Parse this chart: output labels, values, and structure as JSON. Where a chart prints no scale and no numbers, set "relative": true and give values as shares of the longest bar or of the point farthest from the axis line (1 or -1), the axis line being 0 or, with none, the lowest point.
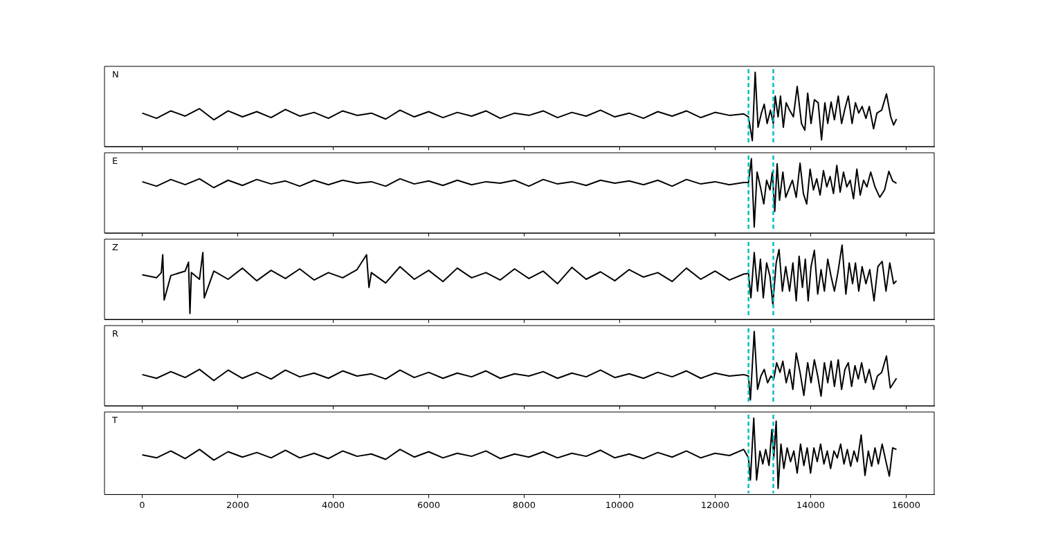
{
  "chart_data": [
    {
      "type": "line",
      "relative": true,
      "marker": "none",
      "annotations": [
        "N"
      ],
      "xlim": [
        -790,
        16590
      ],
      "xticks": [
        0,
        2000,
        4000,
        6000,
        8000,
        10000,
        12000,
        14000,
        16000
      ],
      "tick_labels": false,
      "ref_lines": [
        {
          "axis": "x",
          "value": 12700,
          "color": "#00bfbf",
          "line_style": "dashed"
        },
        {
          "axis": "x",
          "value": 13220,
          "color": "#00bfbf",
          "line_style": "dashed"
        }
      ],
      "series": [
        {
          "color": "#000000",
          "x": [
            0,
            300,
            600,
            900,
            1200,
            1500,
            1800,
            2100,
            2400,
            2700,
            3000,
            3300,
            3600,
            3900,
            4200,
            4500,
            4800,
            5100,
            5400,
            5700,
            6000,
            6300,
            6600,
            6900,
            7200,
            7500,
            7800,
            8100,
            8400,
            8700,
            9000,
            9300,
            9600,
            9900,
            10200,
            10500,
            10800,
            11100,
            11400,
            11700,
            12000,
            12300,
            12600,
            12700,
            12780,
            12840,
            12900,
            12970,
            13030,
            13090,
            13160,
            13220,
            13260,
            13320,
            13370,
            13430,
            13490,
            13560,
            13640,
            13720,
            13810,
            13880,
            13940,
            14010,
            14080,
            14160,
            14230,
            14300,
            14360,
            14430,
            14500,
            14580,
            14650,
            14720,
            14790,
            14870,
            14940,
            15010,
            15080,
            15160,
            15230,
            15320,
            15390,
            15490,
            15590,
            15680,
            15740,
            15800
          ],
          "values": [
            0.45,
            0.38,
            0.48,
            0.41,
            0.51,
            0.36,
            0.48,
            0.4,
            0.47,
            0.39,
            0.5,
            0.41,
            0.46,
            0.38,
            0.48,
            0.42,
            0.45,
            0.37,
            0.49,
            0.4,
            0.47,
            0.39,
            0.46,
            0.41,
            0.48,
            0.38,
            0.45,
            0.42,
            0.48,
            0.39,
            0.46,
            0.41,
            0.49,
            0.4,
            0.45,
            0.38,
            0.47,
            0.41,
            0.48,
            0.39,
            0.46,
            0.42,
            0.44,
            0.4,
            0.08,
            1.0,
            0.26,
            0.45,
            0.57,
            0.31,
            0.49,
            0.31,
            0.68,
            0.4,
            0.68,
            0.26,
            0.59,
            0.49,
            0.4,
            0.81,
            0.31,
            0.22,
            0.72,
            0.31,
            0.63,
            0.59,
            0.09,
            0.59,
            0.31,
            0.6,
            0.36,
            0.68,
            0.31,
            0.51,
            0.68,
            0.31,
            0.59,
            0.45,
            0.54,
            0.38,
            0.54,
            0.24,
            0.45,
            0.49,
            0.71,
            0.4,
            0.29,
            0.37
          ]
        }
      ]
    },
    {
      "type": "line",
      "relative": true,
      "marker": "none",
      "annotations": [
        "E"
      ],
      "xlim": [
        -790,
        16590
      ],
      "xticks": [
        0,
        2000,
        4000,
        6000,
        8000,
        10000,
        12000,
        14000,
        16000
      ],
      "tick_labels": false,
      "ref_lines": [
        {
          "axis": "x",
          "value": 12700,
          "color": "#00bfbf",
          "line_style": "dashed"
        },
        {
          "axis": "x",
          "value": 13220,
          "color": "#00bfbf",
          "line_style": "dashed"
        }
      ],
      "series": [
        {
          "color": "#000000",
          "x": [
            0,
            300,
            600,
            900,
            1200,
            1500,
            1800,
            2100,
            2400,
            2700,
            3000,
            3300,
            3600,
            3900,
            4200,
            4500,
            4800,
            5100,
            5400,
            5700,
            6000,
            6300,
            6600,
            6900,
            7200,
            7500,
            7800,
            8100,
            8400,
            8700,
            9000,
            9300,
            9600,
            9900,
            10200,
            10500,
            10800,
            11100,
            11400,
            11700,
            12000,
            12300,
            12600,
            12700,
            12760,
            12820,
            12880,
            12950,
            13020,
            13080,
            13150,
            13200,
            13250,
            13300,
            13350,
            13420,
            13480,
            13540,
            13620,
            13700,
            13780,
            13850,
            13920,
            13990,
            14060,
            14130,
            14200,
            14270,
            14340,
            14410,
            14480,
            14550,
            14620,
            14690,
            14760,
            14830,
            14900,
            14970,
            15040,
            15110,
            15180,
            15260,
            15350,
            15450,
            15550,
            15640,
            15720,
            15800
          ],
          "values": [
            0.69,
            0.63,
            0.72,
            0.65,
            0.73,
            0.61,
            0.71,
            0.64,
            0.72,
            0.66,
            0.7,
            0.63,
            0.71,
            0.65,
            0.71,
            0.67,
            0.69,
            0.63,
            0.73,
            0.66,
            0.7,
            0.64,
            0.71,
            0.65,
            0.69,
            0.67,
            0.71,
            0.63,
            0.72,
            0.66,
            0.69,
            0.64,
            0.71,
            0.67,
            0.7,
            0.65,
            0.71,
            0.63,
            0.72,
            0.66,
            0.69,
            0.65,
            0.68,
            0.68,
            1.0,
            0.08,
            0.82,
            0.62,
            0.39,
            0.71,
            0.58,
            0.82,
            0.29,
            0.93,
            0.44,
            0.82,
            0.48,
            0.58,
            0.71,
            0.48,
            0.94,
            0.53,
            0.39,
            0.86,
            0.58,
            0.73,
            0.51,
            0.84,
            0.62,
            0.76,
            0.53,
            0.91,
            0.55,
            0.82,
            0.62,
            0.71,
            0.46,
            0.86,
            0.51,
            0.71,
            0.62,
            0.82,
            0.62,
            0.48,
            0.58,
            0.83,
            0.7,
            0.67
          ]
        }
      ]
    },
    {
      "type": "line",
      "relative": true,
      "marker": "none",
      "annotations": [
        "Z"
      ],
      "xlim": [
        -790,
        16590
      ],
      "xticks": [
        0,
        2000,
        4000,
        6000,
        8000,
        10000,
        12000,
        14000,
        16000
      ],
      "tick_labels": false,
      "ref_lines": [
        {
          "axis": "x",
          "value": 12700,
          "color": "#00bfbf",
          "line_style": "dashed"
        },
        {
          "axis": "x",
          "value": 13220,
          "color": "#00bfbf",
          "line_style": "dashed"
        }
      ],
      "series": [
        {
          "color": "#000000",
          "x": [
            0,
            300,
            400,
            430,
            460,
            600,
            900,
            970,
            1000,
            1030,
            1200,
            1270,
            1300,
            1500,
            1800,
            2100,
            2400,
            2700,
            3000,
            3300,
            3600,
            3900,
            4200,
            4500,
            4700,
            4750,
            4800,
            5100,
            5400,
            5700,
            6000,
            6300,
            6600,
            6900,
            7200,
            7500,
            7800,
            8100,
            8400,
            8700,
            9000,
            9300,
            9600,
            9900,
            10200,
            10500,
            10800,
            11100,
            11400,
            11700,
            12000,
            12300,
            12600,
            12700,
            12750,
            12820,
            12890,
            12950,
            13010,
            13080,
            13150,
            13210,
            13280,
            13340,
            13410,
            13480,
            13560,
            13630,
            13700,
            13760,
            13830,
            13890,
            13950,
            14010,
            14080,
            14150,
            14220,
            14290,
            14360,
            14430,
            14500,
            14570,
            14660,
            14740,
            14810,
            14880,
            14940,
            15010,
            15080,
            15160,
            15240,
            15330,
            15410,
            15500,
            15580,
            15660,
            15740,
            15800
          ],
          "values": [
            0.6,
            0.56,
            0.63,
            0.87,
            0.26,
            0.59,
            0.65,
            0.77,
            0.08,
            0.63,
            0.54,
            0.9,
            0.29,
            0.65,
            0.54,
            0.69,
            0.52,
            0.66,
            0.55,
            0.68,
            0.53,
            0.63,
            0.56,
            0.67,
            0.87,
            0.43,
            0.63,
            0.49,
            0.71,
            0.54,
            0.66,
            0.51,
            0.69,
            0.56,
            0.63,
            0.53,
            0.68,
            0.55,
            0.65,
            0.48,
            0.7,
            0.54,
            0.64,
            0.52,
            0.67,
            0.57,
            0.63,
            0.51,
            0.69,
            0.54,
            0.65,
            0.53,
            0.61,
            0.62,
            0.29,
            0.9,
            0.38,
            0.81,
            0.29,
            0.76,
            0.58,
            0.2,
            0.76,
            0.94,
            0.38,
            0.71,
            0.38,
            0.76,
            0.25,
            0.85,
            0.43,
            0.81,
            0.25,
            0.71,
            0.93,
            0.34,
            0.67,
            0.38,
            0.81,
            0.58,
            0.38,
            0.62,
            1.0,
            0.34,
            0.76,
            0.48,
            0.76,
            0.38,
            0.71,
            0.48,
            0.67,
            0.25,
            0.71,
            0.78,
            0.38,
            0.76,
            0.48,
            0.52
          ]
        }
      ]
    },
    {
      "type": "line",
      "relative": true,
      "marker": "none",
      "annotations": [
        "R"
      ],
      "xlim": [
        -790,
        16590
      ],
      "xticks": [
        0,
        2000,
        4000,
        6000,
        8000,
        10000,
        12000,
        14000,
        16000
      ],
      "tick_labels": false,
      "ref_lines": [
        {
          "axis": "x",
          "value": 12700,
          "color": "#00bfbf",
          "line_style": "dashed"
        },
        {
          "axis": "x",
          "value": 13220,
          "color": "#00bfbf",
          "line_style": "dashed"
        }
      ],
      "series": [
        {
          "color": "#000000",
          "x": [
            0,
            300,
            600,
            900,
            1200,
            1500,
            1800,
            2100,
            2400,
            2700,
            3000,
            3300,
            3600,
            3900,
            4200,
            4500,
            4800,
            5100,
            5400,
            5700,
            6000,
            6300,
            6600,
            6900,
            7200,
            7500,
            7800,
            8100,
            8400,
            8700,
            9000,
            9300,
            9600,
            9900,
            10200,
            10500,
            10800,
            11100,
            11400,
            11700,
            12000,
            12300,
            12600,
            12700,
            12740,
            12820,
            12890,
            12960,
            13030,
            13100,
            13170,
            13230,
            13290,
            13360,
            13420,
            13490,
            13560,
            13630,
            13700,
            13780,
            13860,
            13940,
            14010,
            14080,
            14150,
            14220,
            14290,
            14360,
            14430,
            14500,
            14580,
            14650,
            14720,
            14790,
            14860,
            14930,
            15000,
            15070,
            15150,
            15230,
            15320,
            15400,
            15490,
            15590,
            15670,
            15740,
            15800
          ],
          "values": [
            0.42,
            0.37,
            0.46,
            0.38,
            0.49,
            0.34,
            0.48,
            0.37,
            0.45,
            0.36,
            0.48,
            0.39,
            0.44,
            0.37,
            0.47,
            0.4,
            0.43,
            0.36,
            0.48,
            0.38,
            0.45,
            0.37,
            0.44,
            0.39,
            0.47,
            0.37,
            0.43,
            0.4,
            0.46,
            0.37,
            0.44,
            0.39,
            0.48,
            0.38,
            0.43,
            0.37,
            0.45,
            0.39,
            0.47,
            0.37,
            0.44,
            0.4,
            0.42,
            0.4,
            0.08,
            1.0,
            0.22,
            0.4,
            0.49,
            0.31,
            0.4,
            0.36,
            0.58,
            0.45,
            0.6,
            0.31,
            0.49,
            0.22,
            0.71,
            0.45,
            0.14,
            0.58,
            0.31,
            0.62,
            0.4,
            0.13,
            0.58,
            0.31,
            0.6,
            0.26,
            0.62,
            0.22,
            0.49,
            0.58,
            0.26,
            0.54,
            0.36,
            0.58,
            0.31,
            0.49,
            0.22,
            0.4,
            0.45,
            0.67,
            0.24,
            0.31,
            0.37
          ]
        }
      ]
    },
    {
      "type": "line",
      "relative": true,
      "marker": "none",
      "annotations": [
        "T"
      ],
      "xlim": [
        -790,
        16590
      ],
      "xticks": [
        0,
        2000,
        4000,
        6000,
        8000,
        10000,
        12000,
        14000,
        16000
      ],
      "tick_labels": "x",
      "ref_lines": [
        {
          "axis": "x",
          "value": 12700,
          "color": "#00bfbf",
          "line_style": "dashed"
        },
        {
          "axis": "x",
          "value": 13220,
          "color": "#00bfbf",
          "line_style": "dashed"
        }
      ],
      "series": [
        {
          "color": "#000000",
          "x": [
            0,
            300,
            600,
            900,
            1200,
            1500,
            1800,
            2100,
            2400,
            2700,
            3000,
            3300,
            3600,
            3900,
            4200,
            4500,
            4800,
            5100,
            5400,
            5700,
            6000,
            6300,
            6600,
            6900,
            7200,
            7500,
            7800,
            8100,
            8400,
            8700,
            9000,
            9300,
            9600,
            9900,
            10200,
            10500,
            10800,
            11100,
            11400,
            11700,
            12000,
            12300,
            12600,
            12700,
            12740,
            12810,
            12870,
            12940,
            13000,
            13060,
            13130,
            13190,
            13230,
            13280,
            13320,
            13380,
            13440,
            13510,
            13580,
            13650,
            13720,
            13790,
            13860,
            13930,
            14000,
            14070,
            14140,
            14210,
            14280,
            14350,
            14420,
            14490,
            14560,
            14630,
            14700,
            14770,
            14840,
            14910,
            14980,
            15060,
            15140,
            15210,
            15280,
            15350,
            15420,
            15500,
            15580,
            15650,
            15720,
            15800
          ],
          "values": [
            0.52,
            0.48,
            0.57,
            0.47,
            0.59,
            0.45,
            0.56,
            0.49,
            0.55,
            0.48,
            0.58,
            0.48,
            0.54,
            0.47,
            0.57,
            0.5,
            0.53,
            0.46,
            0.59,
            0.49,
            0.56,
            0.48,
            0.54,
            0.5,
            0.57,
            0.47,
            0.53,
            0.49,
            0.56,
            0.48,
            0.54,
            0.5,
            0.58,
            0.48,
            0.53,
            0.47,
            0.55,
            0.49,
            0.57,
            0.48,
            0.54,
            0.51,
            0.59,
            0.48,
            0.19,
            1.0,
            0.19,
            0.57,
            0.4,
            0.59,
            0.38,
            0.85,
            0.48,
            0.96,
            0.08,
            0.66,
            0.34,
            0.61,
            0.43,
            0.57,
            0.28,
            0.66,
            0.38,
            0.61,
            0.28,
            0.61,
            0.43,
            0.66,
            0.4,
            0.57,
            0.34,
            0.57,
            0.48,
            0.66,
            0.4,
            0.59,
            0.37,
            0.57,
            0.43,
            0.78,
            0.25,
            0.57,
            0.37,
            0.61,
            0.4,
            0.66,
            0.43,
            0.24,
            0.61,
            0.59
          ]
        }
      ]
    }
  ]
}
